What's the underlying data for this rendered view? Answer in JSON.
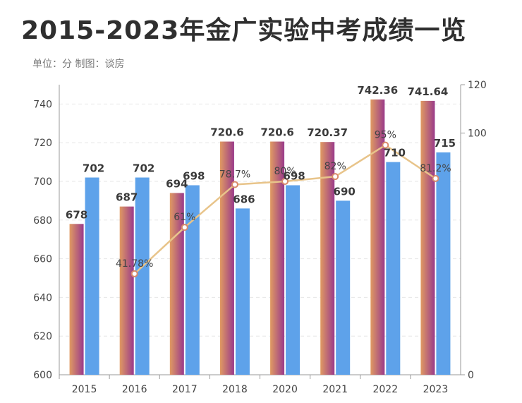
{
  "title": "2015-2023年金广实验中考成绩一览",
  "subtitle": "单位：分 制图：谈房",
  "colors": {
    "bar_a_top": "#9a3a8a",
    "bar_a_bottom": "#e09a62",
    "bar_b": "#5ea2ea",
    "line": "#e8c48a",
    "marker": "#d88a6a"
  },
  "chart_data": {
    "type": "bar",
    "categories": [
      "2015",
      "2016",
      "2017",
      "2018",
      "2020",
      "2021",
      "2022",
      "2023"
    ],
    "series": [
      {
        "values": [
          678,
          687,
          694,
          720.6,
          720.6,
          720.37,
          742.36,
          741.64
        ],
        "labels": [
          "678",
          "687",
          "694",
          "720.6",
          "720.6",
          "720.37",
          "742.36",
          "741.64"
        ]
      },
      {
        "values": [
          702,
          702,
          698,
          686,
          698,
          690,
          710,
          715
        ],
        "labels": [
          "702",
          "702",
          "698",
          "686",
          "698",
          "690",
          "710",
          "715"
        ]
      },
      {
        "type": "line",
        "axis": "right",
        "values": [
          null,
          41.78,
          61,
          78.7,
          80,
          82,
          95,
          81.2
        ],
        "labels": [
          "",
          "41.78%",
          "61%",
          "78.7%",
          "80%",
          "82%",
          "95%",
          "81.2%"
        ]
      }
    ],
    "y_left": {
      "min": 600,
      "max": 750,
      "ticks": [
        "600",
        "620",
        "640",
        "660",
        "680",
        "700",
        "720",
        "740"
      ]
    },
    "y_right": {
      "min": 0,
      "max": 120,
      "ticks": [
        "0",
        "100",
        "120"
      ]
    },
    "grid": true
  }
}
